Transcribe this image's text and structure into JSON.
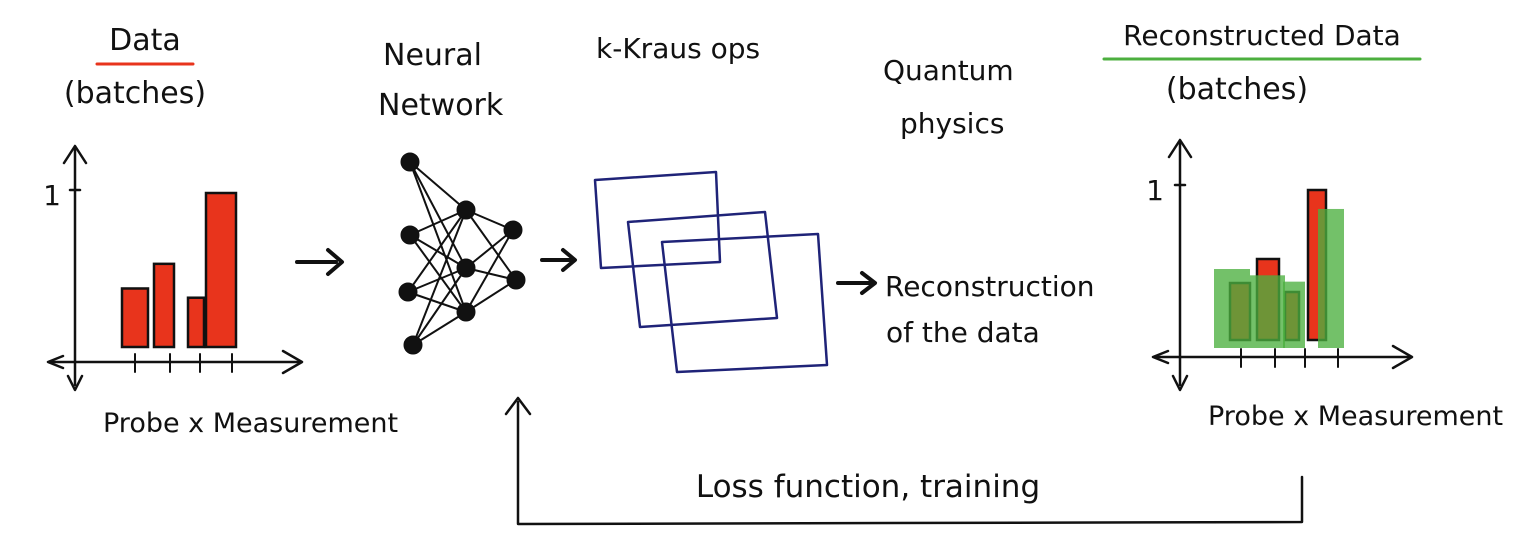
{
  "colors": {
    "ink": "#111111",
    "data_bar": "#e8341c",
    "reconstructed_fill": "#4caf3f",
    "kraus": "#1f2378",
    "data_underline": "#e8341c",
    "reconstructed_underline": "#4caf3f"
  },
  "left_panel": {
    "title": "Data",
    "subtitle": "(batches)",
    "axis_tick": "1",
    "axis_label": "Probe x Measurement",
    "bar_values": [
      0.38,
      0.54,
      0.32,
      1.0
    ]
  },
  "neural_network": {
    "label_line1": "Neural",
    "label_line2": "Network",
    "layers": [
      4,
      3,
      2
    ]
  },
  "kraus": {
    "label": "k-Kraus ops",
    "square_count": 3
  },
  "quantum": {
    "label_line1": "Quantum",
    "label_line2": "physics"
  },
  "reconstruction": {
    "label_line1": "Reconstruction",
    "label_line2": "of the data"
  },
  "right_panel": {
    "title": "Reconstructed Data",
    "subtitle": "(batches)",
    "axis_tick": "1",
    "axis_label": "Probe x Measurement",
    "bar_values": [
      0.38,
      0.54,
      0.32,
      1.0
    ],
    "reconstructed_values": [
      0.5,
      0.46,
      0.42,
      0.88
    ]
  },
  "feedback": {
    "label": "Loss function, training"
  }
}
